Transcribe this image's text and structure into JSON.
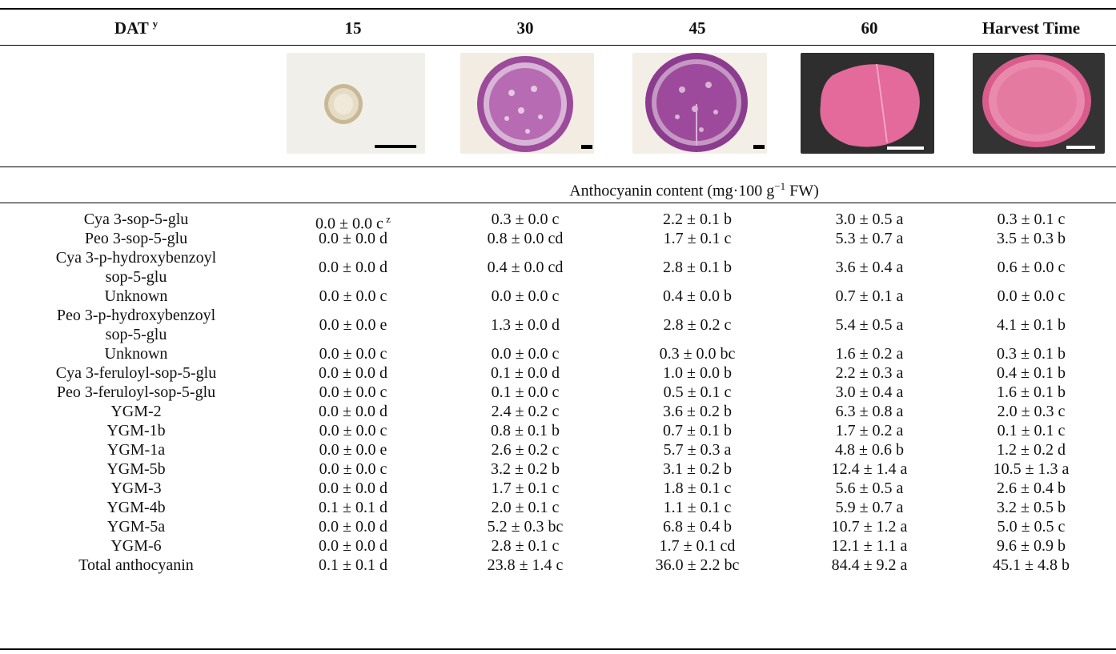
{
  "header": {
    "label": "DAT",
    "label_sup": "y",
    "columns": [
      "15",
      "30",
      "45",
      "60",
      "Harvest Time"
    ]
  },
  "photos": [
    {
      "name": "cross-section-15-DAT",
      "background": "#f1efea",
      "root": "#d9c9a8"
    },
    {
      "name": "cross-section-30-DAT",
      "background": "#f2ece2",
      "root": "#b05aa8"
    },
    {
      "name": "cross-section-45-DAT",
      "background": "#f3eee6",
      "root": "#9a3e98"
    },
    {
      "name": "cross-section-60-DAT",
      "background": "#2e2e2e",
      "root": "#e5679a"
    },
    {
      "name": "cross-section-harvest",
      "background": "#333333",
      "root": "#e47196"
    }
  ],
  "subheader": {
    "text": "Anthocyanin content (mg·100 g",
    "sup": "−1",
    "suffix": " FW)"
  },
  "footnote_mark": "z",
  "rows": [
    {
      "name": "Cya 3-sop-5-glu",
      "values": [
        "0.0 ± 0.0 c",
        "0.3 ± 0.0 c",
        "2.2 ± 0.1 b",
        "3.0 ± 0.5 a",
        "0.3 ± 0.1 c"
      ]
    },
    {
      "name": "Peo 3-sop-5-glu",
      "values": [
        "0.0 ± 0.0 d",
        "0.8 ± 0.0 cd",
        "1.7 ± 0.1 c",
        "5.3 ± 0.7 a",
        "3.5 ± 0.3 b"
      ]
    },
    {
      "name_line1": "Cya 3-p-hydroxybenzoyl",
      "name_line2": "sop-5-glu",
      "values": [
        "0.0 ± 0.0 d",
        "0.4 ± 0.0 cd",
        "2.8 ± 0.1 b",
        "3.6 ± 0.4 a",
        "0.6 ± 0.0 c"
      ]
    },
    {
      "name": "Unknown",
      "values": [
        "0.0 ± 0.0 c",
        "0.0 ± 0.0 c",
        "0.4 ± 0.0 b",
        "0.7 ± 0.1 a",
        "0.0 ± 0.0 c"
      ]
    },
    {
      "name_line1": "Peo 3-p-hydroxybenzoyl",
      "name_line2": "sop-5-glu",
      "values": [
        "0.0 ± 0.0 e",
        "1.3 ± 0.0 d",
        "2.8 ± 0.2 c",
        "5.4 ± 0.5 a",
        "4.1 ± 0.1 b"
      ]
    },
    {
      "name": "Unknown",
      "values": [
        "0.0 ± 0.0 c",
        "0.0 ± 0.0 c",
        "0.3 ± 0.0 bc",
        "1.6 ± 0.2 a",
        "0.3 ± 0.1 b"
      ]
    },
    {
      "name": "Cya 3-feruloyl-sop-5-glu",
      "values": [
        "0.0 ± 0.0 d",
        "0.1 ± 0.0 d",
        "1.0 ± 0.0 b",
        "2.2 ± 0.3 a",
        "0.4 ± 0.1 b"
      ]
    },
    {
      "name": "Peo 3-feruloyl-sop-5-glu",
      "values": [
        "0.0 ± 0.0 c",
        "0.1 ± 0.0 c",
        "0.5 ± 0.1 c",
        "3.0 ± 0.4 a",
        "1.6 ± 0.1 b"
      ]
    },
    {
      "name": "YGM-2",
      "values": [
        "0.0 ± 0.0 d",
        "2.4 ± 0.2 c",
        "3.6 ± 0.2 b",
        "6.3 ± 0.8 a",
        "2.0 ± 0.3 c"
      ]
    },
    {
      "name": "YGM-1b",
      "values": [
        "0.0 ± 0.0 c",
        "0.8 ± 0.1 b",
        "0.7 ± 0.1 b",
        "1.7 ± 0.2 a",
        "0.1 ± 0.1 c"
      ]
    },
    {
      "name": "YGM-1a",
      "values": [
        "0.0 ± 0.0 e",
        "2.6 ± 0.2 c",
        "5.7 ± 0.3 a",
        "4.8 ± 0.6 b",
        "1.2 ± 0.2 d"
      ]
    },
    {
      "name": "YGM-5b",
      "values": [
        "0.0 ± 0.0 c",
        "3.2 ± 0.2 b",
        "3.1 ± 0.2 b",
        "12.4 ± 1.4 a",
        "10.5 ± 1.3 a"
      ]
    },
    {
      "name": "YGM-3",
      "values": [
        "0.0 ± 0.0 d",
        "1.7 ± 0.1 c",
        "1.8 ± 0.1 c",
        "5.6 ± 0.5 a",
        "2.6 ± 0.4 b"
      ]
    },
    {
      "name": "YGM-4b",
      "values": [
        "0.1 ± 0.1 d",
        "2.0 ± 0.1 c",
        "1.1 ± 0.1 c",
        "5.9 ± 0.7 a",
        "3.2 ± 0.5 b"
      ]
    },
    {
      "name": "YGM-5a",
      "values": [
        "0.0 ± 0.0 d",
        "5.2 ± 0.3 bc",
        "6.8 ± 0.4 b",
        "10.7 ± 1.2 a",
        "5.0 ± 0.5 c"
      ]
    },
    {
      "name": "YGM-6",
      "values": [
        "0.0 ± 0.0 d",
        "2.8 ± 0.1 c",
        "1.7 ± 0.1 cd",
        "12.1 ± 1.1 a",
        "9.6 ± 0.9 b"
      ]
    },
    {
      "name": "Total anthocyanin",
      "values": [
        "0.1 ± 0.1 d",
        "23.8 ± 1.4 c",
        "36.0 ± 2.2 bc",
        "84.4 ± 9.2 a",
        "45.1 ± 4.8 b"
      ]
    }
  ]
}
